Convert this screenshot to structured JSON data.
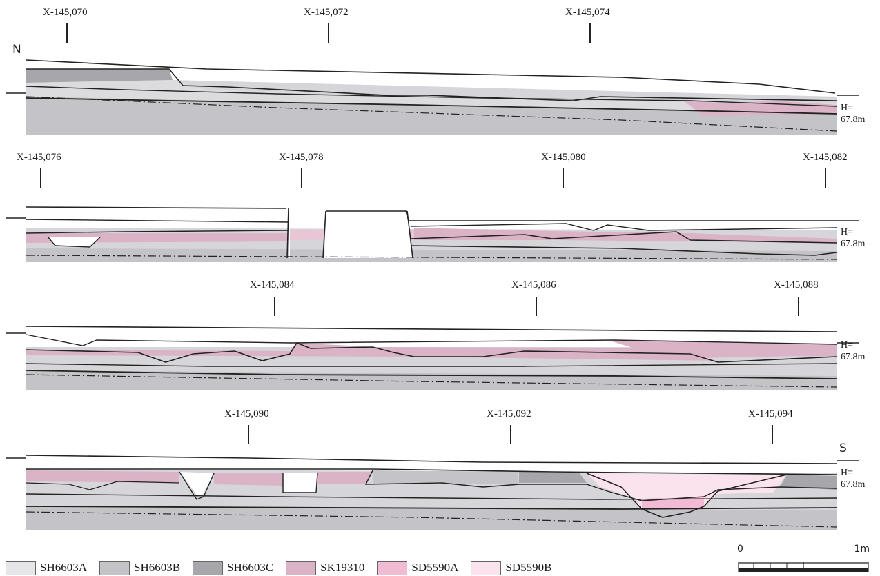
{
  "directions": {
    "north": "N",
    "south": "S"
  },
  "sections": [
    {
      "ticks": [
        "X-145,070",
        "X-145,072",
        "X-145,074"
      ],
      "height_label": [
        "H=",
        "67.8m"
      ]
    },
    {
      "ticks": [
        "X-145,076",
        "X-145,078",
        "X-145,080",
        "X-145,082"
      ],
      "height_label": [
        "H=",
        "67.8m"
      ]
    },
    {
      "ticks": [
        "X-145,084",
        "X-145,086",
        "X-145,088"
      ],
      "height_label": [
        "H=",
        "67.8m"
      ]
    },
    {
      "ticks": [
        "X-145,090",
        "X-145,092",
        "X-145,094"
      ],
      "height_label": [
        "H=",
        "67.8m"
      ]
    }
  ],
  "legend": [
    {
      "label": "SH6603A",
      "color": "#e6e6e8"
    },
    {
      "label": "SH6603B",
      "color": "#c4c4c8"
    },
    {
      "label": "SH6603C",
      "color": "#a6a6ab"
    },
    {
      "label": "SK19310",
      "color": "#dbb3c6"
    },
    {
      "label": "SD5590A",
      "color": "#f1bcd3"
    },
    {
      "label": "SD5590B",
      "color": "#fbe3ed"
    }
  ],
  "scale_bar": {
    "start": "0",
    "end": "1m"
  }
}
